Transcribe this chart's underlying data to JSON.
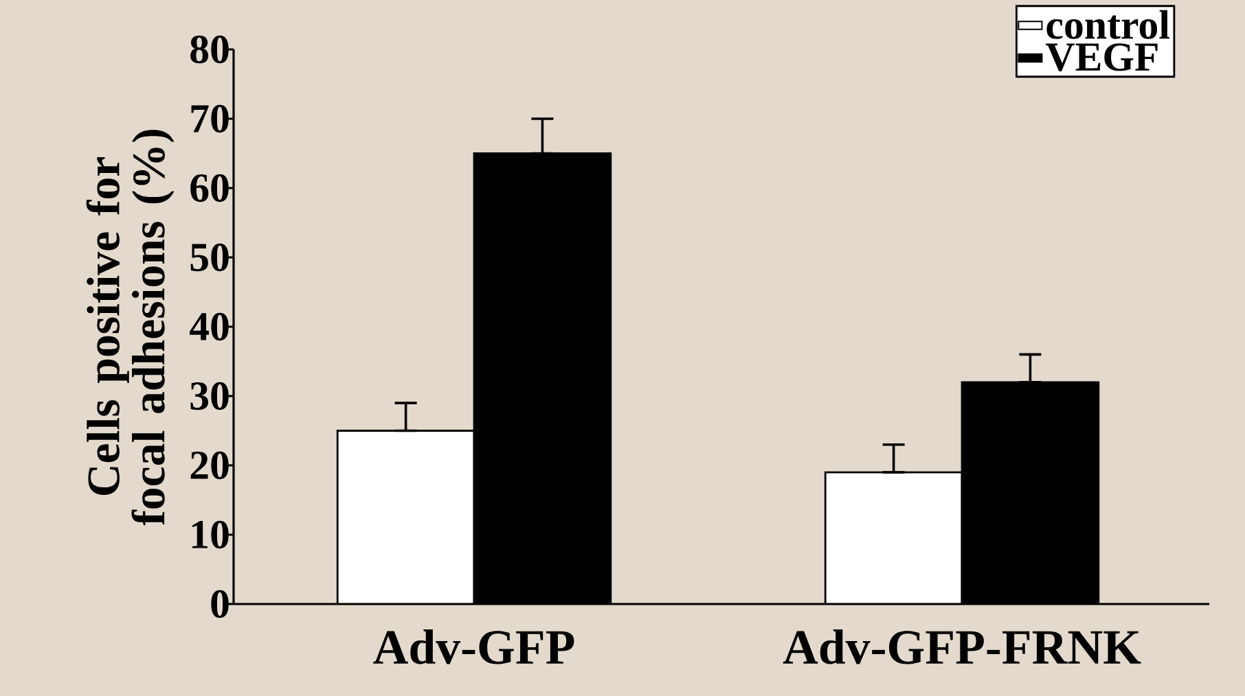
{
  "chart_data": {
    "type": "bar",
    "ylabel": "Cells positive for focal adhesions (%)",
    "categories": [
      "Adv-GFP",
      "Adv-GFP-FRNK"
    ],
    "series": [
      {
        "name": "control",
        "color": "#ffffff",
        "values": [
          25,
          19
        ],
        "errors": [
          [
            25,
            29
          ],
          [
            19,
            23
          ]
        ]
      },
      {
        "name": "VEGF",
        "color": "#000000",
        "values": [
          65,
          32
        ],
        "errors": [
          [
            65,
            70
          ],
          [
            32,
            36
          ]
        ]
      }
    ],
    "ylim": [
      0,
      80
    ],
    "yticks": [
      0,
      10,
      20,
      30,
      40,
      50,
      60,
      70,
      80
    ],
    "grid": false,
    "legend": "top right"
  }
}
